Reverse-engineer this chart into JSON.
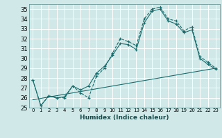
{
  "xlabel": "Humidex (Indice chaleur)",
  "ylabel": "",
  "xlim": [
    -0.5,
    23.5
  ],
  "ylim": [
    25,
    35.5
  ],
  "yticks": [
    25,
    26,
    27,
    28,
    29,
    30,
    31,
    32,
    33,
    34,
    35
  ],
  "xticks": [
    0,
    1,
    2,
    3,
    4,
    5,
    6,
    7,
    8,
    9,
    10,
    11,
    12,
    13,
    14,
    15,
    16,
    17,
    18,
    19,
    20,
    21,
    22,
    23
  ],
  "bg_color": "#d0e8e8",
  "grid_color": "#b8d8d8",
  "line_color": "#1a6b6b",
  "series1": {
    "x": [
      0,
      1,
      2,
      3,
      4,
      5,
      6,
      7,
      8,
      9,
      10,
      11,
      12,
      13,
      14,
      15,
      16,
      17,
      18,
      19,
      20,
      21,
      22,
      23
    ],
    "y": [
      27.8,
      25.2,
      26.2,
      26.0,
      26.0,
      27.2,
      26.5,
      26.0,
      28.2,
      29.0,
      30.5,
      32.0,
      31.7,
      31.3,
      34.0,
      35.0,
      35.2,
      34.0,
      33.8,
      32.8,
      33.2,
      30.2,
      29.6,
      29.0
    ]
  },
  "series2": {
    "x": [
      0,
      1,
      2,
      3,
      4,
      5,
      6,
      7,
      8,
      9,
      10,
      11,
      12,
      13,
      14,
      15,
      16,
      17,
      18,
      19,
      20,
      21,
      22,
      23
    ],
    "y": [
      27.8,
      25.2,
      26.2,
      26.0,
      26.1,
      27.2,
      26.8,
      27.2,
      28.5,
      29.2,
      30.3,
      31.5,
      31.4,
      30.9,
      33.6,
      34.8,
      35.0,
      33.8,
      33.5,
      32.6,
      32.9,
      30.0,
      29.4,
      28.9
    ]
  },
  "series3": {
    "x": [
      0,
      23
    ],
    "y": [
      25.8,
      29.0
    ]
  }
}
